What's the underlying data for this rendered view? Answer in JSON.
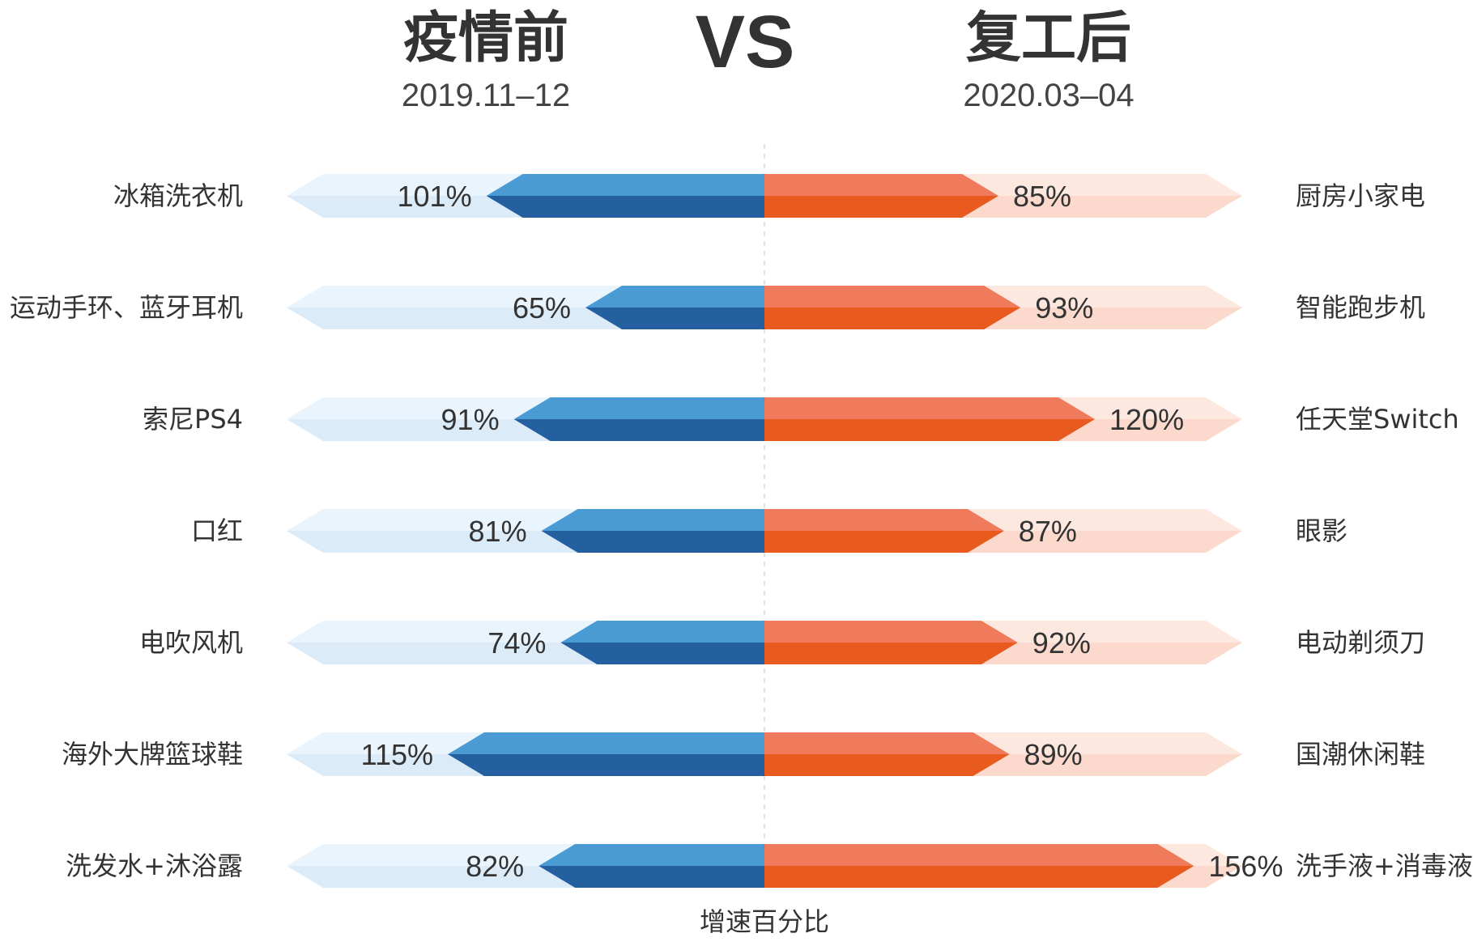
{
  "header": {
    "left_title": "疫情前",
    "left_period": "2019.11–12",
    "vs": "VS",
    "right_title": "复工后",
    "right_period": "2020.03–04"
  },
  "chart_data": {
    "type": "bar",
    "subtype": "diverging-butterfly",
    "xlabel": "增速百分比",
    "rows": [
      {
        "left_label": "冰箱洗衣机",
        "left_value": 101,
        "right_label": "厨房小家电",
        "right_value": 85
      },
      {
        "left_label": "运动手环、蓝牙耳机",
        "left_value": 65,
        "right_label": "智能跑步机",
        "right_value": 93
      },
      {
        "left_label": "索尼PS4",
        "left_value": 91,
        "right_label": "任天堂Switch",
        "right_value": 120
      },
      {
        "left_label": "口红",
        "left_value": 81,
        "right_label": "眼影",
        "right_value": 87
      },
      {
        "left_label": "电吹风机",
        "left_value": 74,
        "right_label": "电动剃须刀",
        "right_value": 92
      },
      {
        "left_label": "海外大牌篮球鞋",
        "left_value": 115,
        "right_label": "国潮休闲鞋",
        "right_value": 89
      },
      {
        "left_label": "洗发水+沐浴露",
        "left_value": 82,
        "right_label": "洗手液+消毒液",
        "right_value": 156
      }
    ],
    "series": [
      {
        "name": "疫情前",
        "color_light": "#4a9ad4",
        "color_dark": "#245fa0",
        "track_light": "#eaf4fc",
        "track_dark": "#dcebf8"
      },
      {
        "name": "复工后",
        "color_light": "#ef7a5c",
        "color_dark": "#e85a1e",
        "track_light": "#fde8e0",
        "track_dark": "#fbd9cc"
      }
    ],
    "value_suffix": "%",
    "xlim": [
      0,
      160
    ]
  }
}
